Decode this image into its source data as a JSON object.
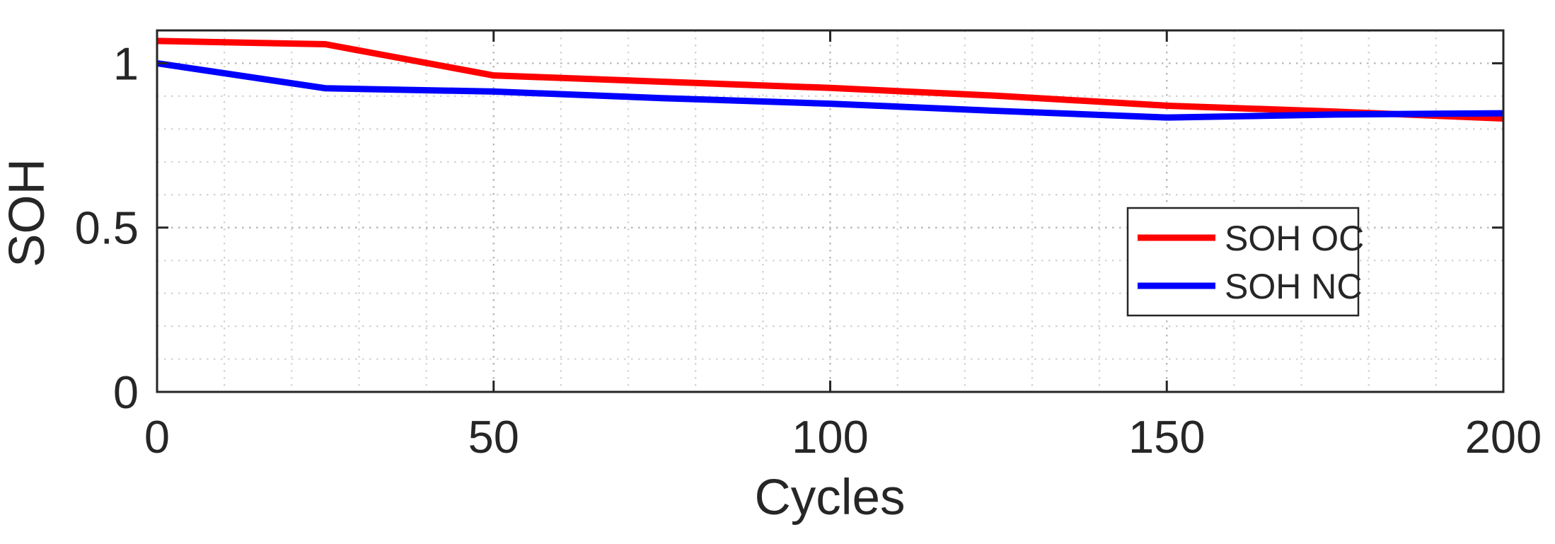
{
  "figure": {
    "background": "#ffffff",
    "axis_color": "#262626",
    "grid_major_color": "#b2b2b2",
    "grid_minor_color": "#d2d2d2"
  },
  "chart_data": {
    "type": "line",
    "title": "",
    "xlabel": "Cycles",
    "ylabel": "SOH",
    "xlim": [
      0,
      200
    ],
    "ylim": [
      0,
      1.1
    ],
    "xticks": [
      0,
      50,
      100,
      150,
      200
    ],
    "yticks": [
      0,
      0.5,
      1
    ],
    "x_minor_step": 10,
    "y_minor_step": 0.1,
    "grid": "dotted major and minor gridlines, boxed axes with inward ticks",
    "legend_position": "inside right-center",
    "x": [
      0,
      25,
      50,
      75,
      100,
      125,
      150,
      175,
      200
    ],
    "series": [
      {
        "name": "SOH OC",
        "color": "#ff0000",
        "values": [
          1.068,
          1.058,
          0.963,
          0.944,
          0.925,
          0.901,
          0.871,
          0.853,
          0.832
        ]
      },
      {
        "name": "SOH NC",
        "color": "#0000ff",
        "values": [
          1.0,
          0.924,
          0.914,
          0.894,
          0.877,
          0.855,
          0.835,
          0.844,
          0.848
        ]
      }
    ]
  }
}
